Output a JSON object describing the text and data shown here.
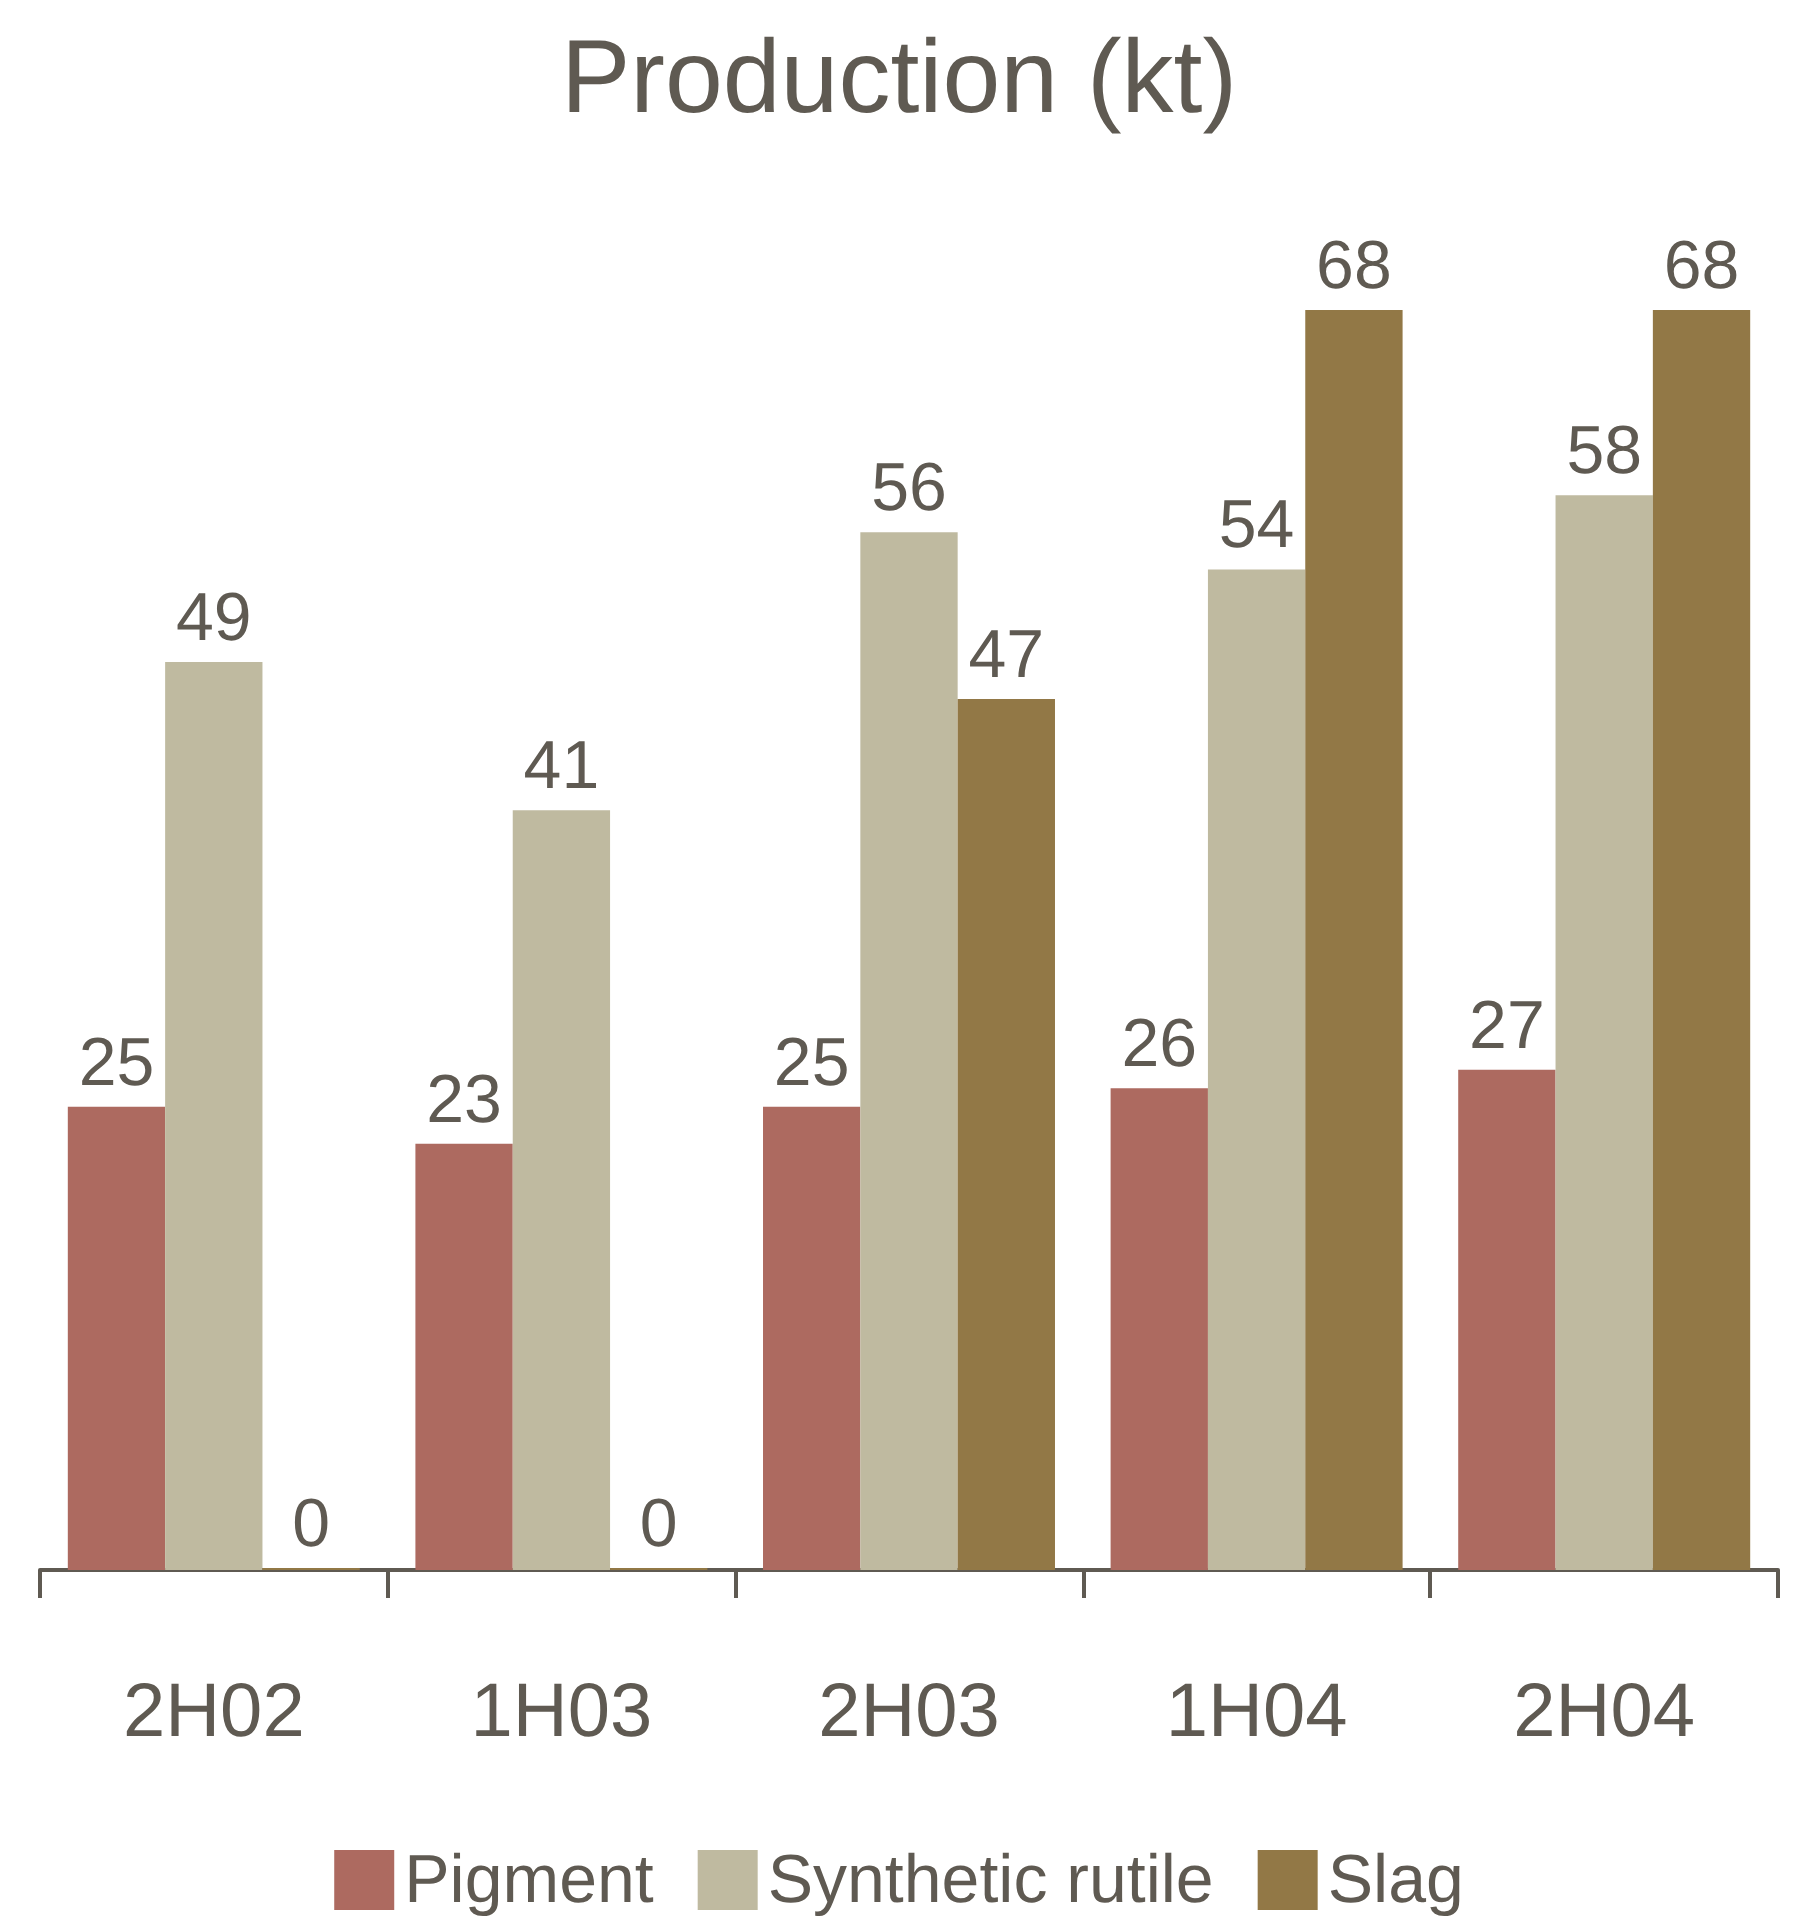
{
  "chart_data": {
    "type": "bar",
    "title": "Production (kt)",
    "categories": [
      "2H02",
      "1H03",
      "2H03",
      "1H04",
      "2H04"
    ],
    "series": [
      {
        "name": "Pigment",
        "color": "#ad6a60",
        "values": [
          25,
          23,
          25,
          26,
          27
        ]
      },
      {
        "name": "Synthetic rutile",
        "color": "#bfbaa0",
        "values": [
          49,
          41,
          56,
          54,
          58
        ]
      },
      {
        "name": "Slag",
        "color": "#927846",
        "values": [
          0,
          0,
          47,
          68,
          68
        ]
      }
    ],
    "data_labels": true,
    "legend": "bottom"
  }
}
